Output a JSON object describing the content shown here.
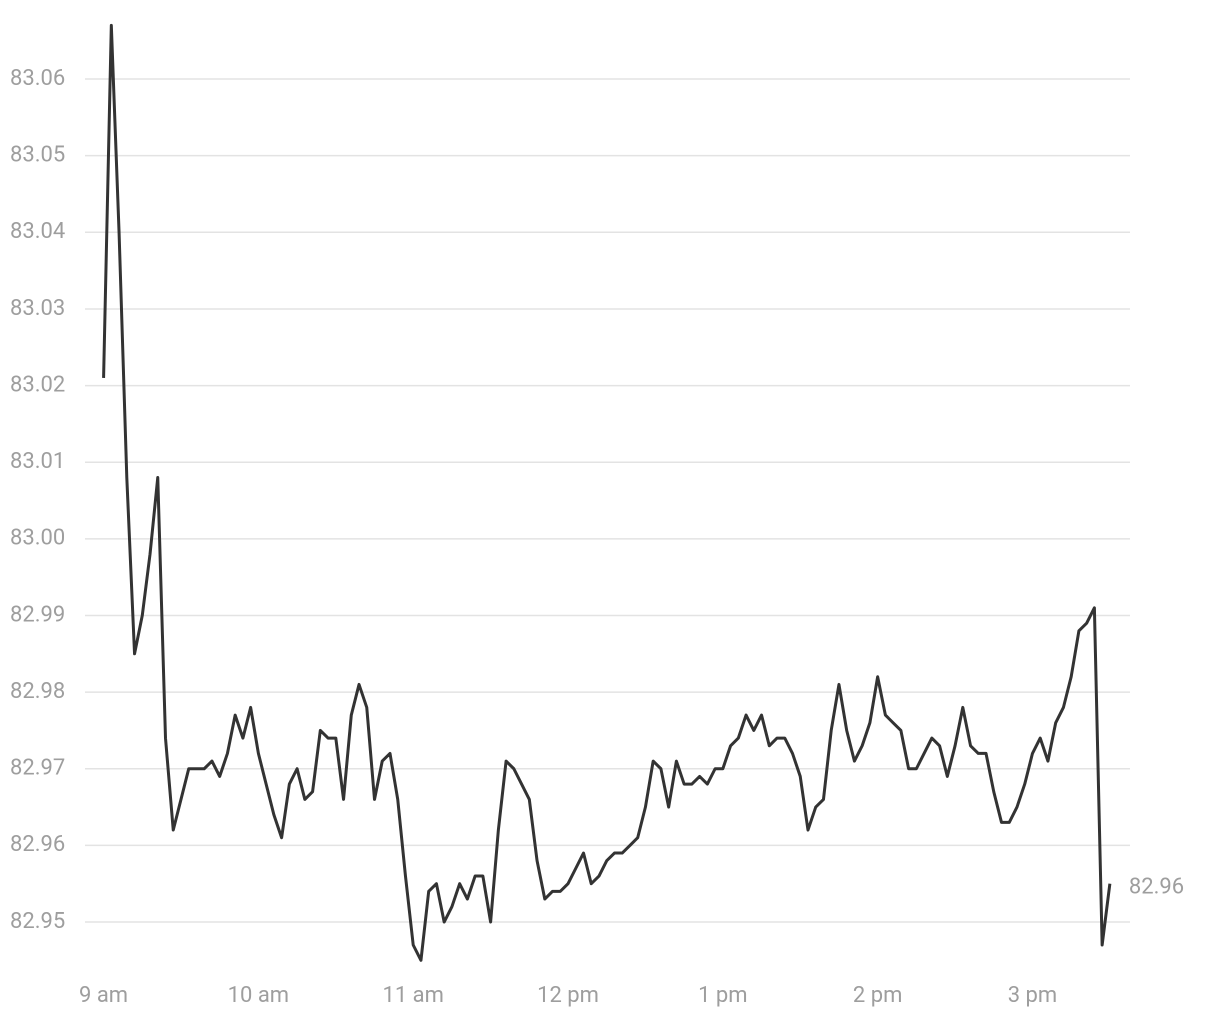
{
  "chart_data": {
    "type": "line",
    "x": [
      9,
      9.05,
      9.1,
      9.15,
      9.2,
      9.25,
      9.3,
      9.35,
      9.4,
      9.45,
      9.5,
      9.55,
      9.6,
      9.65,
      9.7,
      9.75,
      9.8,
      9.85,
      9.9,
      9.95,
      10,
      10.05,
      10.1,
      10.15,
      10.2,
      10.25,
      10.3,
      10.35,
      10.4,
      10.45,
      10.5,
      10.55,
      10.6,
      10.65,
      10.7,
      10.75,
      10.8,
      10.85,
      10.9,
      10.95,
      11,
      11.05,
      11.1,
      11.15,
      11.2,
      11.25,
      11.3,
      11.35,
      11.4,
      11.45,
      11.5,
      11.55,
      11.6,
      11.65,
      11.7,
      11.75,
      11.8,
      11.85,
      11.9,
      11.95,
      12,
      12.05,
      12.1,
      12.15,
      12.2,
      12.25,
      12.3,
      12.35,
      12.4,
      12.45,
      12.5,
      12.55,
      12.6,
      12.65,
      12.7,
      12.75,
      12.8,
      12.85,
      12.9,
      12.95,
      13,
      13.05,
      13.1,
      13.15,
      13.2,
      13.25,
      13.3,
      13.35,
      13.4,
      13.45,
      13.5,
      13.55,
      13.6,
      13.65,
      13.7,
      13.75,
      13.8,
      13.85,
      13.9,
      13.95,
      14,
      14.05,
      14.1,
      14.15,
      14.2,
      14.25,
      14.3,
      14.35,
      14.4,
      14.45,
      14.5,
      14.55,
      14.6,
      14.65,
      14.7,
      14.75,
      14.8,
      14.85,
      14.9,
      14.95,
      15,
      15.05,
      15.1,
      15.15,
      15.2,
      15.25,
      15.3,
      15.35,
      15.4,
      15.45,
      15.5
    ],
    "series": [
      {
        "color": "#333333",
        "values": [
          83.021,
          83.067,
          83.04,
          83.008,
          82.985,
          82.99,
          82.998,
          83.008,
          82.974,
          82.962,
          82.966,
          82.97,
          82.97,
          82.97,
          82.971,
          82.969,
          82.972,
          82.977,
          82.974,
          82.978,
          82.972,
          82.968,
          82.964,
          82.961,
          82.968,
          82.97,
          82.966,
          82.967,
          82.975,
          82.974,
          82.974,
          82.966,
          82.977,
          82.981,
          82.978,
          82.966,
          82.971,
          82.972,
          82.966,
          82.956,
          82.947,
          82.945,
          82.954,
          82.955,
          82.95,
          82.952,
          82.955,
          82.953,
          82.956,
          82.956,
          82.95,
          82.962,
          82.971,
          82.97,
          82.968,
          82.966,
          82.958,
          82.953,
          82.954,
          82.954,
          82.955,
          82.957,
          82.959,
          82.955,
          82.956,
          82.958,
          82.959,
          82.959,
          82.96,
          82.961,
          82.965,
          82.971,
          82.97,
          82.965,
          82.971,
          82.968,
          82.968,
          82.969,
          82.968,
          82.97,
          82.97,
          82.973,
          82.974,
          82.977,
          82.975,
          82.977,
          82.973,
          82.974,
          82.974,
          82.972,
          82.969,
          82.962,
          82.965,
          82.966,
          82.975,
          82.981,
          82.975,
          82.971,
          82.973,
          82.976,
          82.982,
          82.977,
          82.976,
          82.975,
          82.97,
          82.97,
          82.972,
          82.974,
          82.973,
          82.969,
          82.973,
          82.978,
          82.973,
          82.972,
          82.972,
          82.967,
          82.963,
          82.963,
          82.965,
          82.968,
          82.972,
          82.974,
          82.971,
          82.976,
          82.978,
          82.982,
          82.988,
          82.989,
          82.991,
          82.947,
          82.955
        ]
      }
    ],
    "last_price_label": "82.96",
    "xlim": [
      8.88,
      15.63
    ],
    "xticks": [
      {
        "value": 9,
        "label": "9 am"
      },
      {
        "value": 10,
        "label": "10 am"
      },
      {
        "value": 11,
        "label": "11 am"
      },
      {
        "value": 12,
        "label": "12 pm"
      },
      {
        "value": 13,
        "label": "1 pm"
      },
      {
        "value": 14,
        "label": "2 pm"
      },
      {
        "value": 15,
        "label": "3 pm"
      }
    ],
    "ylim": [
      82.944,
      83.07
    ],
    "yticks": [
      {
        "value": 82.95,
        "label": "82.95"
      },
      82.96,
      82.97,
      82.98,
      82.99,
      {
        "value": 83.0,
        "label": "83.00"
      },
      83.01,
      83.02,
      83.03,
      83.04,
      83.05,
      83.06
    ],
    "grid": true
  }
}
